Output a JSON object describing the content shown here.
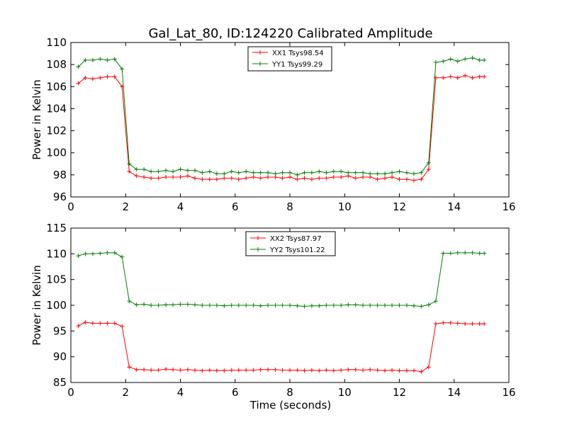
{
  "chart_data": [
    {
      "type": "line",
      "title": "Gal_Lat_80, ID:124220 Calibrated Amplitude",
      "xlabel": "",
      "ylabel": "Power in Kelvin",
      "xlim": [
        0,
        16
      ],
      "ylim": [
        96,
        110
      ],
      "xticks": [
        "0",
        "2",
        "4",
        "6",
        "8",
        "10",
        "12",
        "14",
        "16"
      ],
      "yticks": [
        "96",
        "98",
        "100",
        "102",
        "104",
        "106",
        "108",
        "110"
      ],
      "grid": false,
      "legend_position": "top-center",
      "x": [
        0.27,
        0.53,
        0.8,
        1.07,
        1.33,
        1.6,
        1.87,
        2.13,
        2.4,
        2.67,
        2.93,
        3.2,
        3.47,
        3.73,
        4.0,
        4.27,
        4.53,
        4.8,
        5.07,
        5.33,
        5.6,
        5.87,
        6.13,
        6.4,
        6.67,
        6.93,
        7.2,
        7.47,
        7.73,
        8.0,
        8.27,
        8.53,
        8.8,
        9.07,
        9.33,
        9.6,
        9.87,
        10.13,
        10.4,
        10.67,
        10.93,
        11.2,
        11.47,
        11.73,
        12.0,
        12.27,
        12.53,
        12.8,
        13.07,
        13.33,
        13.6,
        13.87,
        14.13,
        14.4,
        14.67,
        14.93,
        15.1
      ],
      "series": [
        {
          "name": "XX1 Tsys98.54",
          "color": "#ff0000",
          "values": [
            106.3,
            106.8,
            106.7,
            106.8,
            106.9,
            106.9,
            106.0,
            98.3,
            97.9,
            97.8,
            97.7,
            97.7,
            97.8,
            97.8,
            97.8,
            97.9,
            97.7,
            97.6,
            97.6,
            97.6,
            97.7,
            97.7,
            97.6,
            97.7,
            97.8,
            97.7,
            97.8,
            97.8,
            97.7,
            97.8,
            97.6,
            97.7,
            97.6,
            97.7,
            97.7,
            97.8,
            97.8,
            97.9,
            97.7,
            97.8,
            97.8,
            97.6,
            97.7,
            97.8,
            97.6,
            97.6,
            97.5,
            97.6,
            98.5,
            106.8,
            106.8,
            106.9,
            106.8,
            107.0,
            106.8,
            106.9,
            106.9
          ]
        },
        {
          "name": "YY1 Tsys99.29",
          "color": "#008000",
          "values": [
            107.8,
            108.4,
            108.4,
            108.5,
            108.4,
            108.5,
            107.6,
            99.0,
            98.5,
            98.5,
            98.3,
            98.3,
            98.4,
            98.3,
            98.5,
            98.4,
            98.4,
            98.2,
            98.3,
            98.1,
            98.1,
            98.3,
            98.2,
            98.3,
            98.2,
            98.2,
            98.2,
            98.1,
            98.2,
            98.2,
            98.0,
            98.2,
            98.2,
            98.3,
            98.2,
            98.3,
            98.3,
            98.2,
            98.2,
            98.2,
            98.1,
            98.1,
            98.1,
            98.2,
            98.3,
            98.2,
            98.1,
            98.2,
            99.1,
            108.2,
            108.3,
            108.5,
            108.3,
            108.5,
            108.6,
            108.4,
            108.4
          ]
        }
      ]
    },
    {
      "type": "line",
      "title": "",
      "xlabel": "Time (seconds)",
      "ylabel": "Power in Kelvin",
      "xlim": [
        0,
        16
      ],
      "ylim": [
        85,
        115
      ],
      "xticks": [
        "0",
        "2",
        "4",
        "6",
        "8",
        "10",
        "12",
        "14",
        "16"
      ],
      "yticks": [
        "85",
        "90",
        "95",
        "100",
        "105",
        "110",
        "115"
      ],
      "grid": false,
      "legend_position": "top-center",
      "x": [
        0.27,
        0.53,
        0.8,
        1.07,
        1.33,
        1.6,
        1.87,
        2.13,
        2.4,
        2.67,
        2.93,
        3.2,
        3.47,
        3.73,
        4.0,
        4.27,
        4.53,
        4.8,
        5.07,
        5.33,
        5.6,
        5.87,
        6.13,
        6.4,
        6.67,
        6.93,
        7.2,
        7.47,
        7.73,
        8.0,
        8.27,
        8.53,
        8.8,
        9.07,
        9.33,
        9.6,
        9.87,
        10.13,
        10.4,
        10.67,
        10.93,
        11.2,
        11.47,
        11.73,
        12.0,
        12.27,
        12.53,
        12.8,
        13.07,
        13.33,
        13.6,
        13.87,
        14.13,
        14.4,
        14.67,
        14.93,
        15.1
      ],
      "series": [
        {
          "name": "XX2 Tsys87.97",
          "color": "#ff0000",
          "values": [
            96.0,
            96.7,
            96.5,
            96.5,
            96.5,
            96.5,
            95.9,
            88.0,
            87.5,
            87.5,
            87.4,
            87.4,
            87.6,
            87.5,
            87.4,
            87.5,
            87.4,
            87.3,
            87.4,
            87.3,
            87.3,
            87.4,
            87.4,
            87.4,
            87.4,
            87.5,
            87.5,
            87.5,
            87.4,
            87.4,
            87.4,
            87.3,
            87.4,
            87.3,
            87.4,
            87.3,
            87.4,
            87.5,
            87.5,
            87.4,
            87.5,
            87.4,
            87.3,
            87.4,
            87.3,
            87.3,
            87.3,
            87.1,
            88.0,
            96.4,
            96.6,
            96.6,
            96.5,
            96.4,
            96.4,
            96.4,
            96.4
          ]
        },
        {
          "name": "YY2 Tsys101.22",
          "color": "#008000",
          "values": [
            109.6,
            110.0,
            110.0,
            110.1,
            110.2,
            110.2,
            109.4,
            100.8,
            100.1,
            100.2,
            100.0,
            100.0,
            100.1,
            100.1,
            100.2,
            100.2,
            100.1,
            100.0,
            100.0,
            100.0,
            99.9,
            100.0,
            100.0,
            100.0,
            100.0,
            99.9,
            100.0,
            100.0,
            100.0,
            100.0,
            99.9,
            99.8,
            99.9,
            99.9,
            100.0,
            100.0,
            100.0,
            100.1,
            100.1,
            100.0,
            100.0,
            100.0,
            100.0,
            100.0,
            100.0,
            100.0,
            99.9,
            99.8,
            100.1,
            100.8,
            110.1,
            110.1,
            110.2,
            110.2,
            110.2,
            110.1,
            110.1
          ]
        }
      ]
    }
  ]
}
